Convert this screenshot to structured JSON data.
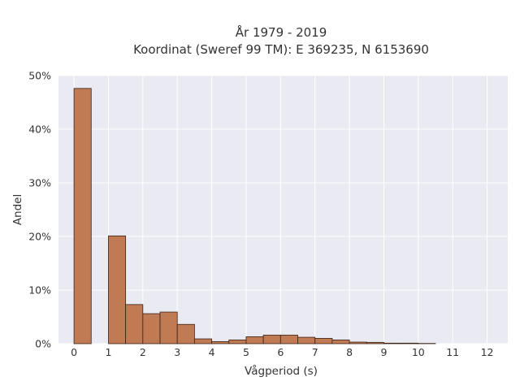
{
  "chart_data": {
    "type": "bar",
    "title": "År 1979 - 2019",
    "subtitle": "Koordinat (Sweref 99 TM): E 369235, N 6153690",
    "xlabel": "Vågperiod (s)",
    "ylabel": "Andel",
    "xlim": [
      -0.45,
      12.6
    ],
    "ylim": [
      0,
      50
    ],
    "x_ticks": [
      0,
      1,
      2,
      3,
      4,
      5,
      6,
      7,
      8,
      9,
      10,
      11,
      12
    ],
    "y_ticks": [
      0,
      10,
      20,
      30,
      40,
      50
    ],
    "y_tick_labels": [
      "0%",
      "10%",
      "20%",
      "30%",
      "40%",
      "50%"
    ],
    "grid": true,
    "bar_color": "#c07a54",
    "bar_edge_color": "#3a2418",
    "background_color": "#eaeaf2",
    "bins": [
      {
        "x0": 0.0,
        "x1": 0.5,
        "value": 47.6
      },
      {
        "x0": 1.0,
        "x1": 1.5,
        "value": 20.1
      },
      {
        "x0": 1.5,
        "x1": 2.0,
        "value": 7.3
      },
      {
        "x0": 2.0,
        "x1": 2.5,
        "value": 5.6
      },
      {
        "x0": 2.5,
        "x1": 3.0,
        "value": 5.9
      },
      {
        "x0": 3.0,
        "x1": 3.5,
        "value": 3.6
      },
      {
        "x0": 3.5,
        "x1": 4.0,
        "value": 0.9
      },
      {
        "x0": 4.0,
        "x1": 4.5,
        "value": 0.4
      },
      {
        "x0": 4.5,
        "x1": 5.0,
        "value": 0.7
      },
      {
        "x0": 5.0,
        "x1": 5.5,
        "value": 1.3
      },
      {
        "x0": 5.5,
        "x1": 6.0,
        "value": 1.6
      },
      {
        "x0": 6.0,
        "x1": 6.5,
        "value": 1.6
      },
      {
        "x0": 6.5,
        "x1": 7.0,
        "value": 1.2
      },
      {
        "x0": 7.0,
        "x1": 7.5,
        "value": 1.0
      },
      {
        "x0": 7.5,
        "x1": 8.0,
        "value": 0.7
      },
      {
        "x0": 8.0,
        "x1": 8.5,
        "value": 0.3
      },
      {
        "x0": 8.5,
        "x1": 9.0,
        "value": 0.25
      },
      {
        "x0": 9.0,
        "x1": 9.5,
        "value": 0.1
      },
      {
        "x0": 9.5,
        "x1": 10.0,
        "value": 0.1
      },
      {
        "x0": 10.0,
        "x1": 10.5,
        "value": 0.05
      }
    ]
  }
}
